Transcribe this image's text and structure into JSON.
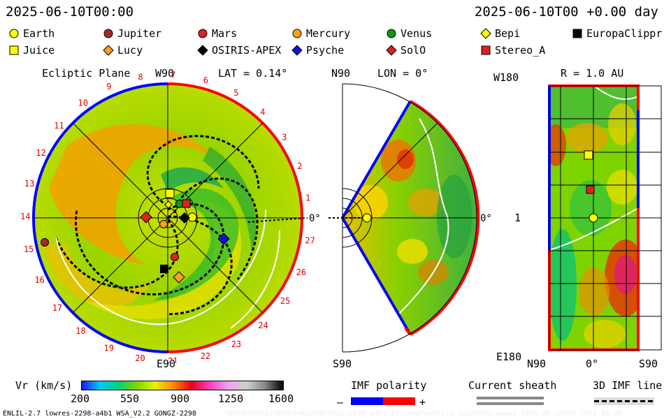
{
  "header": {
    "left_time": "2025-06-10T00:00",
    "right_time": "2025-06-10T00 +0.00 day"
  },
  "legend": {
    "items": [
      {
        "label": "Earth",
        "shape": "circle",
        "color": "#ffff00"
      },
      {
        "label": "Jupiter",
        "shape": "circle",
        "color": "#a52a2a"
      },
      {
        "label": "Mars",
        "shape": "circle",
        "color": "#e02020"
      },
      {
        "label": "Mercury",
        "shape": "circle",
        "color": "#ff9f1a"
      },
      {
        "label": "Venus",
        "shape": "circle",
        "color": "#119911"
      },
      {
        "label": "Bepi",
        "shape": "diamond",
        "color": "#ffff00"
      },
      {
        "label": "EuropaClippr",
        "shape": "square",
        "color": "#000000"
      },
      {
        "label": "Juice",
        "shape": "square",
        "color": "#ffff00"
      },
      {
        "label": "Lucy",
        "shape": "diamond",
        "color": "#ff9f1a"
      },
      {
        "label": "OSIRIS-APEX",
        "shape": "diamond",
        "color": "#000000"
      },
      {
        "label": "Psyche",
        "shape": "diamond",
        "color": "#1010e0"
      },
      {
        "label": "SolO",
        "shape": "diamond",
        "color": "#e02020"
      },
      {
        "label": "Stereo_A",
        "shape": "square",
        "color": "#e02020"
      }
    ]
  },
  "ecliptic": {
    "title": "Ecliptic Plane",
    "top_label": "W90",
    "lat_label": "LAT = 0.14°",
    "bottom_label": "E90",
    "zero_label": "0°",
    "sector_numbers": [
      "1",
      "2",
      "3",
      "4",
      "5",
      "6",
      "7",
      "8",
      "9",
      "10",
      "11",
      "12",
      "13",
      "14",
      "15",
      "16",
      "17",
      "18",
      "19",
      "20",
      "21",
      "22",
      "23",
      "24",
      "25",
      "26",
      "27"
    ]
  },
  "meridional": {
    "top_label": "N90",
    "lon_label": "LON = 0°",
    "bottom_label": "S90",
    "zero_label": "0°"
  },
  "radial": {
    "top_left_label": "W180",
    "r_label": "R = 1.0 AU",
    "side_label": "1",
    "bottom_left_label": "E180",
    "x_left": "N90",
    "x_mid": "0°",
    "x_right": "S90"
  },
  "colorbar": {
    "title": "Vr (km/s)",
    "ticks": [
      "200",
      "550",
      "900",
      "1250",
      "1600"
    ],
    "colors": [
      "#1a1aff",
      "#00c8ff",
      "#00d27a",
      "#7ed400",
      "#e8f000",
      "#ff8800",
      "#e80020",
      "#ff40c0",
      "#f0a0f0",
      "#d0d0d0",
      "#888888",
      "#000000"
    ]
  },
  "imf": {
    "title": "IMF polarity",
    "minus": "–",
    "plus": "+",
    "neg_color": "#0000ff",
    "pos_color": "#ff0000"
  },
  "sheath": {
    "title": "Current sheath"
  },
  "imfline": {
    "title": "3D IMF line"
  },
  "footer": {
    "left": "ENLIL-2.7 lowres-2298-a4b1 WSA_V2.2 GONGZ-2298",
    "right": "UNSUE061021c025/b4b1h30x90x1.2298-a4b1.16-cn0pfunnc1cd-1g53q5d2.gongz-2025-06-10T00  2025-06-10"
  }
}
